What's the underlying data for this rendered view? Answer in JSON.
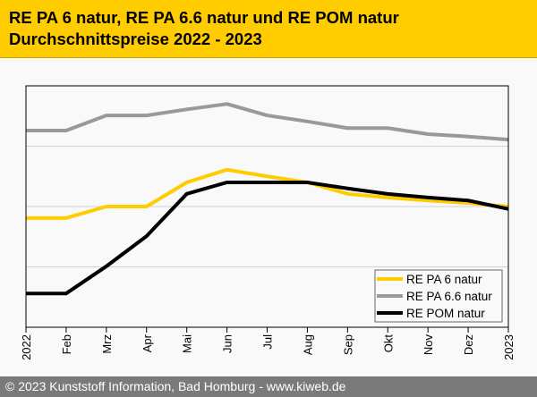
{
  "header": {
    "title_line1": "RE PA 6 natur, RE PA 6.6 natur und RE POM natur",
    "title_line2": "Durchschnittspreise 2022 - 2023"
  },
  "footer": {
    "text": "© 2023 Kunststoff Information, Bad Homburg - www.kiweb.de"
  },
  "chart_data": {
    "type": "line",
    "title": "RE PA 6 natur, RE PA 6.6 natur und RE POM natur Durchschnittspreise 2022 - 2023",
    "xlabel": "",
    "ylabel": "",
    "categories": [
      "2022",
      "Feb",
      "Mrz",
      "Apr",
      "Mai",
      "Jun",
      "Jul",
      "Aug",
      "Sep",
      "Okt",
      "Nov",
      "Dez",
      "2023"
    ],
    "ylim": [
      0,
      4
    ],
    "y_tick_labels_shown": false,
    "grid": "horizontal",
    "legend": "bottom-right",
    "series": [
      {
        "name": "RE PA 6 natur",
        "color": "#ffcc00",
        "values": [
          1.81,
          1.81,
          2.0,
          2.0,
          2.4,
          2.61,
          2.5,
          2.4,
          2.21,
          2.15,
          2.1,
          2.06,
          2.0
        ]
      },
      {
        "name": "RE PA 6.6 natur",
        "color": "#999999",
        "values": [
          3.26,
          3.26,
          3.51,
          3.51,
          3.61,
          3.7,
          3.51,
          3.41,
          3.3,
          3.3,
          3.2,
          3.16,
          3.11
        ]
      },
      {
        "name": "RE POM natur",
        "color": "#000000",
        "values": [
          0.56,
          0.56,
          1.01,
          1.51,
          2.21,
          2.4,
          2.4,
          2.4,
          2.3,
          2.21,
          2.15,
          2.1,
          1.96
        ]
      }
    ]
  }
}
